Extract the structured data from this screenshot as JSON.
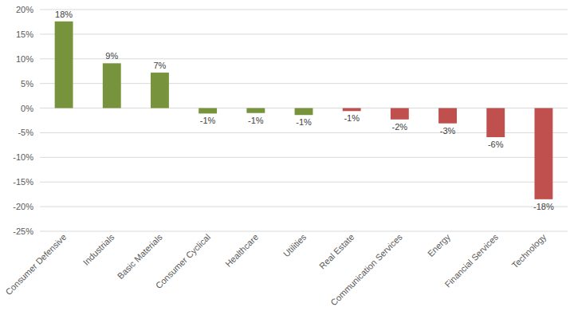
{
  "chart_data": {
    "type": "bar",
    "categories": [
      "Consumer Defensive",
      "Industrials",
      "Basic Materials",
      "Consumer Cyclical",
      "Healthcare",
      "Utilities",
      "Real Estate",
      "Communication Services",
      "Energy",
      "Financial Services",
      "Technology"
    ],
    "values": [
      17.6,
      9.1,
      7.2,
      -1.1,
      -1.0,
      -1.4,
      -0.6,
      -2.3,
      -3.1,
      -5.9,
      -18.5
    ],
    "value_labels": [
      "18%",
      "9%",
      "7%",
      "-1%",
      "-1%",
      "-1%",
      "-1%",
      "-2%",
      "-3%",
      "-6%",
      "-18%"
    ],
    "colors": [
      "#77933c",
      "#77933c",
      "#77933c",
      "#77933c",
      "#77933c",
      "#77933c",
      "#c0504d",
      "#c0504d",
      "#c0504d",
      "#c0504d",
      "#c0504d"
    ],
    "ylim": [
      -25,
      20
    ],
    "yticks": [
      {
        "value": -25,
        "label": "-25%"
      },
      {
        "value": -20,
        "label": "-20%"
      },
      {
        "value": -15,
        "label": "-15%"
      },
      {
        "value": -10,
        "label": "-10%"
      },
      {
        "value": -5,
        "label": "-5%"
      },
      {
        "value": 0,
        "label": "0%"
      },
      {
        "value": 5,
        "label": "5%"
      },
      {
        "value": 10,
        "label": "10%"
      },
      {
        "value": 15,
        "label": "15%"
      },
      {
        "value": 20,
        "label": "20%"
      }
    ],
    "grid": true,
    "data_labels": true
  }
}
